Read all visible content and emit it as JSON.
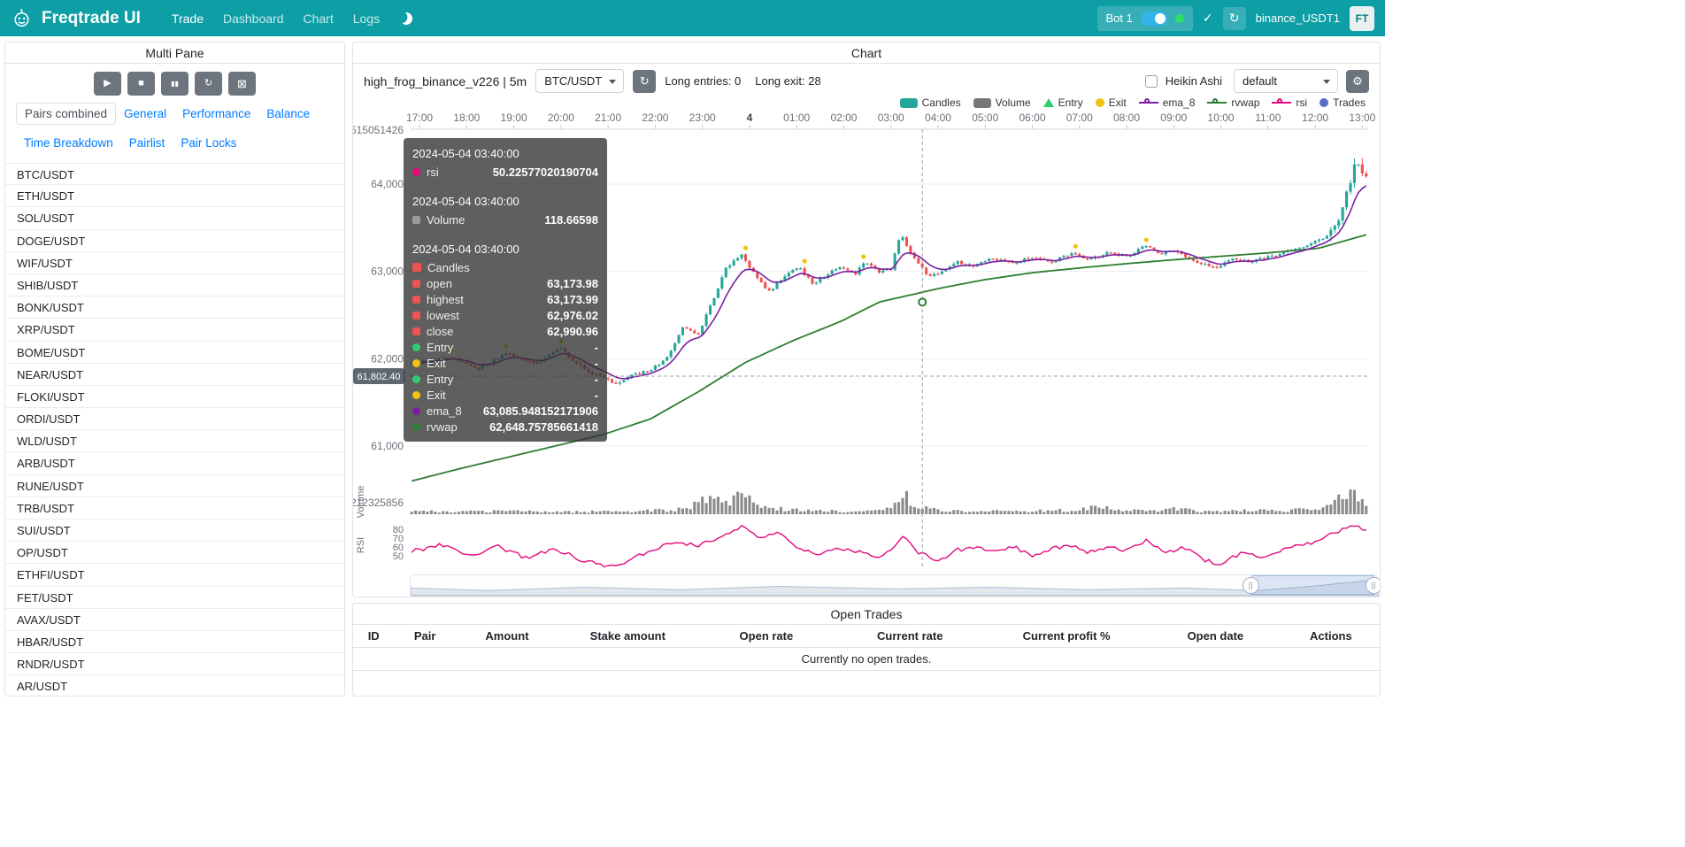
{
  "colors": {
    "navbar": "#0d9ea6",
    "btn_grey": "#6c757d",
    "link_blue": "#007bff",
    "border": "#dee2e6",
    "candle_up": "#26a69a",
    "candle_down": "#ef5350",
    "entry_green": "#2ecc71",
    "exit_yellow": "#f1c40f",
    "ema_purple": "#7b1fa2",
    "rvwap_green": "#2e7d32",
    "rsi_pink": "#e5097f",
    "trades_blue": "#5470c6",
    "volume_grey": "#8b8b8b"
  },
  "navbar": {
    "brand": "Freqtrade UI",
    "links": [
      {
        "label": "Trade",
        "active": true
      },
      {
        "label": "Dashboard",
        "active": false
      },
      {
        "label": "Chart",
        "active": false
      },
      {
        "label": "Logs",
        "active": false
      }
    ],
    "bot_label": "Bot 1",
    "check": "✓",
    "reload_glyph": "↻",
    "account": "binance_USDT1",
    "avatar": "FT"
  },
  "multi_pane": {
    "title": "Multi Pane",
    "controls": [
      {
        "name": "play",
        "glyph": "▶"
      },
      {
        "name": "stop",
        "glyph": "■"
      },
      {
        "name": "pause",
        "glyph": "▮▮"
      },
      {
        "name": "reload",
        "glyph": "↻"
      },
      {
        "name": "close-trades",
        "glyph": "⊠"
      }
    ],
    "tabs": [
      {
        "label": "Pairs combined",
        "active": true
      },
      {
        "label": "General",
        "active": false
      },
      {
        "label": "Performance",
        "active": false
      },
      {
        "label": "Balance",
        "active": false
      },
      {
        "label": "Time Breakdown",
        "active": false
      },
      {
        "label": "Pairlist",
        "active": false
      },
      {
        "label": "Pair Locks",
        "active": false
      }
    ],
    "pairs": [
      "BTC/USDT",
      "ETH/USDT",
      "SOL/USDT",
      "DOGE/USDT",
      "WIF/USDT",
      "SHIB/USDT",
      "BONK/USDT",
      "XRP/USDT",
      "BOME/USDT",
      "NEAR/USDT",
      "FLOKI/USDT",
      "ORDI/USDT",
      "WLD/USDT",
      "ARB/USDT",
      "RUNE/USDT",
      "TRB/USDT",
      "SUI/USDT",
      "OP/USDT",
      "ETHFI/USDT",
      "FET/USDT",
      "AVAX/USDT",
      "HBAR/USDT",
      "RNDR/USDT",
      "AR/USDT"
    ]
  },
  "chart_panel": {
    "title": "Chart",
    "strategy": "high_frog_binance_v226 | 5m",
    "pair_select": "BTC/USDT",
    "refresh_glyph": "↻",
    "entries": "Long entries: 0",
    "exits": "Long exit: 28",
    "heikin_ashi": "Heikin Ashi",
    "plot_select": "default",
    "gear_glyph": "⚙",
    "legend": [
      {
        "label": "Candles",
        "type": "rect",
        "color": "#26a69a"
      },
      {
        "label": "Volume",
        "type": "rect",
        "color": "#777777"
      },
      {
        "label": "Entry",
        "type": "triangle",
        "color": "#2ecc71"
      },
      {
        "label": "Exit",
        "type": "circle",
        "color": "#f1c40f"
      },
      {
        "label": "ema_8",
        "type": "line",
        "color": "#7b1fa2"
      },
      {
        "label": "rvwap",
        "type": "line",
        "color": "#2e7d32"
      },
      {
        "label": "rsi",
        "type": "line",
        "color": "#e5097f"
      },
      {
        "label": "Trades",
        "type": "dot",
        "color": "#5470c6"
      }
    ]
  },
  "tooltip": {
    "sections": [
      {
        "time": "2024-05-04 03:40:00",
        "rows": [
          {
            "label": "rsi",
            "value": "50.22577020190704",
            "marker": "circle",
            "color": "#e5097f"
          }
        ]
      },
      {
        "time": "2024-05-04 03:40:00",
        "rows": [
          {
            "label": "Volume",
            "value": "118.66598",
            "marker": "square",
            "color": "#9a9a9a"
          }
        ]
      },
      {
        "time": "2024-05-04 03:40:00",
        "header": {
          "label": "Candles",
          "marker": "square",
          "color": "#ef5350"
        },
        "rows": [
          {
            "label": "open",
            "value": "63,173.98",
            "marker": "square",
            "color": "#ef5350"
          },
          {
            "label": "highest",
            "value": "63,173.99",
            "marker": "square",
            "color": "#ef5350"
          },
          {
            "label": "lowest",
            "value": "62,976.02",
            "marker": "square",
            "color": "#ef5350"
          },
          {
            "label": "close",
            "value": "62,990.96",
            "marker": "square",
            "color": "#ef5350"
          },
          {
            "label": "Entry",
            "value": "-",
            "marker": "circle",
            "color": "#2ecc71"
          },
          {
            "label": "Exit",
            "value": "-",
            "marker": "circle",
            "color": "#f1c40f"
          },
          {
            "label": "Entry",
            "value": "-",
            "marker": "circle",
            "color": "#2ecc71"
          },
          {
            "label": "Exit",
            "value": "-",
            "marker": "circle",
            "color": "#f1c40f"
          },
          {
            "label": "ema_8",
            "value": "63,085.948152171906",
            "marker": "circle",
            "color": "#7b1fa2"
          },
          {
            "label": "rvwap",
            "value": "62,648.75785661418",
            "marker": "circle",
            "color": "#2e7d32"
          }
        ]
      }
    ]
  },
  "chart_data": {
    "type": "candlestick",
    "pair": "BTC/USDT",
    "timeframe": "5m",
    "xaxis_position": "top",
    "legend_position": "top-right",
    "x_labels": [
      "17:00",
      "18:00",
      "19:00",
      "20:00",
      "21:00",
      "22:00",
      "23:00",
      "4",
      "01:00",
      "02:00",
      "03:00",
      "04:00",
      "05:00",
      "06:00",
      "07:00",
      "08:00",
      "09:00",
      "10:00",
      "11:00",
      "12:00",
      "13:00"
    ],
    "y_ticks": [
      [
        64000,
        "64,000"
      ],
      [
        63000,
        "63,000"
      ],
      [
        62000,
        "62,000"
      ],
      [
        61000,
        "61,000"
      ]
    ],
    "y_top_label": "515051426",
    "volume_max_label": "212325856",
    "pane_labels": {
      "volume": "Volume",
      "rsi": "RSI"
    },
    "rsi_ticks": [
      80,
      70,
      60,
      50
    ],
    "axis_pointer_price": "61,802.40",
    "crosshair_time": "2024-05-04 03:40:00",
    "crosshair_bar": 130,
    "bars": 244,
    "hover": {
      "open": 63173.98,
      "high": 63173.99,
      "low": 62976.02,
      "close": 62990.96,
      "ema_8": 63085.948152171906,
      "rvwap": 62648.75785661418,
      "rsi": 50.22577020190704,
      "volume": 118.66598
    },
    "price_anchors": [
      [
        0,
        61950
      ],
      [
        0.04,
        62020
      ],
      [
        0.07,
        61890
      ],
      [
        0.1,
        62060
      ],
      [
        0.13,
        61950
      ],
      [
        0.155,
        62120
      ],
      [
        0.18,
        61880
      ],
      [
        0.2,
        61790
      ],
      [
        0.215,
        61700
      ],
      [
        0.23,
        61810
      ],
      [
        0.25,
        61860
      ],
      [
        0.27,
        62040
      ],
      [
        0.285,
        62380
      ],
      [
        0.3,
        62280
      ],
      [
        0.315,
        62650
      ],
      [
        0.33,
        63050
      ],
      [
        0.345,
        63200
      ],
      [
        0.36,
        62950
      ],
      [
        0.375,
        62760
      ],
      [
        0.39,
        62950
      ],
      [
        0.405,
        63060
      ],
      [
        0.42,
        62860
      ],
      [
        0.435,
        62960
      ],
      [
        0.45,
        63060
      ],
      [
        0.465,
        62970
      ],
      [
        0.475,
        63130
      ],
      [
        0.49,
        62990
      ],
      [
        0.502,
        63030
      ],
      [
        0.512,
        63430
      ],
      [
        0.525,
        63180
      ],
      [
        0.54,
        62950
      ],
      [
        0.555,
        62990
      ],
      [
        0.57,
        63110
      ],
      [
        0.59,
        63070
      ],
      [
        0.61,
        63150
      ],
      [
        0.63,
        63090
      ],
      [
        0.65,
        63170
      ],
      [
        0.67,
        63110
      ],
      [
        0.69,
        63200
      ],
      [
        0.71,
        63140
      ],
      [
        0.73,
        63210
      ],
      [
        0.75,
        63170
      ],
      [
        0.768,
        63300
      ],
      [
        0.785,
        63190
      ],
      [
        0.8,
        63250
      ],
      [
        0.82,
        63120
      ],
      [
        0.84,
        63040
      ],
      [
        0.86,
        63140
      ],
      [
        0.88,
        63110
      ],
      [
        0.9,
        63170
      ],
      [
        0.92,
        63230
      ],
      [
        0.94,
        63300
      ],
      [
        0.955,
        63380
      ],
      [
        0.968,
        63520
      ],
      [
        0.98,
        63900
      ],
      [
        0.99,
        64280
      ],
      [
        1,
        64080
      ]
    ],
    "rvwap_anchors": [
      [
        0,
        60600
      ],
      [
        0.05,
        60740
      ],
      [
        0.1,
        60870
      ],
      [
        0.15,
        61000
      ],
      [
        0.2,
        61130
      ],
      [
        0.25,
        61310
      ],
      [
        0.3,
        61620
      ],
      [
        0.35,
        61960
      ],
      [
        0.4,
        62210
      ],
      [
        0.45,
        62430
      ],
      [
        0.49,
        62649
      ],
      [
        0.55,
        62800
      ],
      [
        0.6,
        62905
      ],
      [
        0.65,
        62985
      ],
      [
        0.7,
        63040
      ],
      [
        0.75,
        63090
      ],
      [
        0.8,
        63135
      ],
      [
        0.85,
        63175
      ],
      [
        0.9,
        63215
      ],
      [
        0.95,
        63265
      ],
      [
        1,
        63420
      ]
    ],
    "rsi_anchors": [
      [
        0,
        55
      ],
      [
        0.03,
        63
      ],
      [
        0.06,
        50
      ],
      [
        0.09,
        61
      ],
      [
        0.12,
        47
      ],
      [
        0.15,
        58
      ],
      [
        0.18,
        44
      ],
      [
        0.205,
        39
      ],
      [
        0.225,
        44
      ],
      [
        0.25,
        56
      ],
      [
        0.28,
        66
      ],
      [
        0.3,
        60
      ],
      [
        0.325,
        74
      ],
      [
        0.345,
        83
      ],
      [
        0.365,
        68
      ],
      [
        0.385,
        77
      ],
      [
        0.405,
        59
      ],
      [
        0.425,
        50
      ],
      [
        0.445,
        60
      ],
      [
        0.465,
        54
      ],
      [
        0.49,
        50.2
      ],
      [
        0.505,
        58
      ],
      [
        0.515,
        72
      ],
      [
        0.53,
        54
      ],
      [
        0.55,
        44
      ],
      [
        0.57,
        56
      ],
      [
        0.59,
        61
      ],
      [
        0.61,
        54
      ],
      [
        0.63,
        60
      ],
      [
        0.65,
        51
      ],
      [
        0.67,
        58
      ],
      [
        0.69,
        63
      ],
      [
        0.71,
        54
      ],
      [
        0.73,
        60
      ],
      [
        0.75,
        56
      ],
      [
        0.77,
        68
      ],
      [
        0.79,
        54
      ],
      [
        0.81,
        60
      ],
      [
        0.83,
        45
      ],
      [
        0.85,
        41
      ],
      [
        0.87,
        55
      ],
      [
        0.89,
        49
      ],
      [
        0.91,
        56
      ],
      [
        0.93,
        61
      ],
      [
        0.95,
        66
      ],
      [
        0.968,
        76
      ],
      [
        0.985,
        86
      ],
      [
        1,
        79
      ]
    ],
    "volume_anchors": [
      [
        0,
        0.12
      ],
      [
        0.05,
        0.1
      ],
      [
        0.1,
        0.14
      ],
      [
        0.15,
        0.1
      ],
      [
        0.2,
        0.12
      ],
      [
        0.25,
        0.14
      ],
      [
        0.28,
        0.2
      ],
      [
        0.3,
        0.45
      ],
      [
        0.315,
        0.7
      ],
      [
        0.33,
        0.55
      ],
      [
        0.345,
        0.8
      ],
      [
        0.36,
        0.45
      ],
      [
        0.38,
        0.25
      ],
      [
        0.4,
        0.18
      ],
      [
        0.42,
        0.14
      ],
      [
        0.45,
        0.12
      ],
      [
        0.47,
        0.15
      ],
      [
        0.49,
        0.13
      ],
      [
        0.505,
        0.3
      ],
      [
        0.515,
        0.95
      ],
      [
        0.525,
        0.45
      ],
      [
        0.54,
        0.22
      ],
      [
        0.56,
        0.15
      ],
      [
        0.6,
        0.12
      ],
      [
        0.65,
        0.14
      ],
      [
        0.7,
        0.18
      ],
      [
        0.72,
        0.3
      ],
      [
        0.74,
        0.16
      ],
      [
        0.78,
        0.14
      ],
      [
        0.8,
        0.22
      ],
      [
        0.82,
        0.14
      ],
      [
        0.85,
        0.12
      ],
      [
        0.88,
        0.16
      ],
      [
        0.9,
        0.14
      ],
      [
        0.93,
        0.18
      ],
      [
        0.955,
        0.35
      ],
      [
        0.97,
        0.9
      ],
      [
        0.98,
        1.0
      ],
      [
        0.99,
        0.85
      ],
      [
        1,
        0.6
      ]
    ],
    "history_sparkline": [
      [
        0,
        0.45
      ],
      [
        0.08,
        0.3
      ],
      [
        0.18,
        0.5
      ],
      [
        0.28,
        0.35
      ],
      [
        0.38,
        0.55
      ],
      [
        0.5,
        0.4
      ],
      [
        0.6,
        0.5
      ],
      [
        0.7,
        0.35
      ],
      [
        0.8,
        0.45
      ],
      [
        0.875,
        0.3
      ],
      [
        0.93,
        0.55
      ],
      [
        1,
        0.95
      ]
    ],
    "zoom_selection": [
      0.868,
      0.995
    ],
    "zoom_handle_glyph": "||"
  },
  "open_trades": {
    "title": "Open Trades",
    "columns": [
      "ID",
      "Pair",
      "Amount",
      "Stake amount",
      "Open rate",
      "Current rate",
      "Current profit %",
      "Open date",
      "Actions"
    ],
    "empty": "Currently no open trades."
  }
}
